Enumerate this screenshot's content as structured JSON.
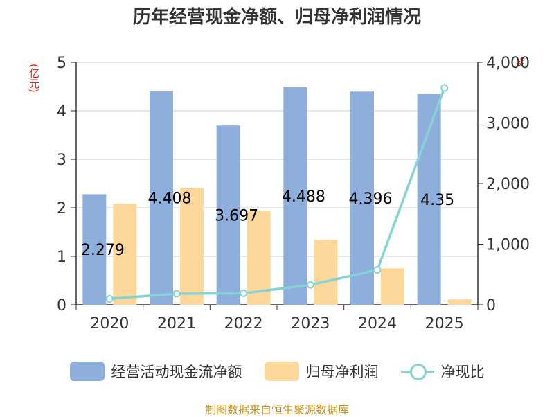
{
  "chart_data": {
    "type": "bar",
    "title": "历年经营现金净额、归母净利润情况",
    "categories": [
      "2020",
      "2021",
      "2022",
      "2023",
      "2024",
      "2025"
    ],
    "left_unit": "(亿元)",
    "right_unit": "%",
    "ylim_left": [
      0,
      5
    ],
    "yticks_left": [
      "0",
      "1",
      "2",
      "3",
      "4",
      "5"
    ],
    "ylim_right": [
      0,
      4000
    ],
    "yticks_right": [
      "0",
      "1,000",
      "2,000",
      "3,000",
      "4,000"
    ],
    "series": [
      {
        "name": "经营活动现金流净额",
        "kind": "bar",
        "axis": "left",
        "color": "#8eaedc",
        "values": [
          2.279,
          4.408,
          3.697,
          4.488,
          4.396,
          4.35
        ],
        "labels": [
          "2.279",
          "4.408",
          "3.697",
          "4.488",
          "4.396",
          "4.35"
        ]
      },
      {
        "name": "归母净利润",
        "kind": "bar",
        "axis": "left",
        "color": "#fdd89a",
        "values": [
          2.08,
          2.41,
          1.94,
          1.34,
          0.75,
          0.11
        ]
      },
      {
        "name": "净现比",
        "kind": "line",
        "axis": "right",
        "color": "#86d3d6",
        "values": [
          98,
          183,
          190,
          329,
          576,
          3577
        ]
      }
    ],
    "grid": true,
    "legend_position": "bottom"
  },
  "source": "制图数据来自恒生聚源数据库"
}
